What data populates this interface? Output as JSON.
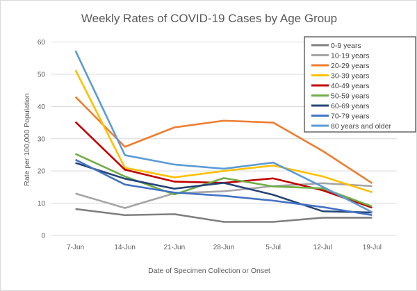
{
  "chart_data": {
    "type": "line",
    "title": "Weekly Rates of COVID-19 Cases by Age Group",
    "xlabel": "Date of Specimen Collection or Onset",
    "ylabel": "Rate per 100,000 Population",
    "ylim": [
      0,
      60
    ],
    "yticks": [
      "0",
      "10",
      "20",
      "30",
      "40",
      "50",
      "60"
    ],
    "grid": true,
    "legend": "top-right",
    "categories": [
      "7-Jun",
      "14-Jun",
      "21-Jun",
      "28-Jun",
      "5-Jul",
      "12-Jul",
      "19-Jul"
    ],
    "series": [
      {
        "name": "0-9 years",
        "color": "#7f7f7f",
        "values": [
          8.2,
          6.3,
          6.6,
          4.2,
          4.2,
          5.5,
          5.5
        ]
      },
      {
        "name": "10-19 years",
        "color": "#a5a5a5",
        "values": [
          13,
          8.5,
          13.1,
          13.7,
          15.3,
          16.2,
          15.3
        ]
      },
      {
        "name": "20-29 years",
        "color": "#ed7d31",
        "values": [
          43,
          27.5,
          33.5,
          35.6,
          35,
          26.2,
          16.2
        ]
      },
      {
        "name": "30-39 years",
        "color": "#ffc000",
        "values": [
          51.3,
          21,
          18,
          20,
          21.7,
          18.3,
          13.4
        ]
      },
      {
        "name": "40-49 years",
        "color": "#c00000",
        "values": [
          35.2,
          20.4,
          16.7,
          16.3,
          17.7,
          14,
          8.6
        ]
      },
      {
        "name": "50-59 years",
        "color": "#70ad47",
        "values": [
          25.3,
          18.3,
          12.7,
          17.8,
          15.2,
          14.6,
          9
        ]
      },
      {
        "name": "60-69 years",
        "color": "#264478",
        "values": [
          22.5,
          17.6,
          14.5,
          16.3,
          12.6,
          7.5,
          7.1
        ]
      },
      {
        "name": "70-79 years",
        "color": "#4472c4",
        "values": [
          23.5,
          15.8,
          13.3,
          12.3,
          10.8,
          8.8,
          6.3
        ]
      },
      {
        "name": "80 years and older",
        "color": "#5b9bd5",
        "values": [
          57.3,
          24.9,
          22,
          20.7,
          22.6,
          15.1,
          7.2
        ]
      }
    ]
  }
}
